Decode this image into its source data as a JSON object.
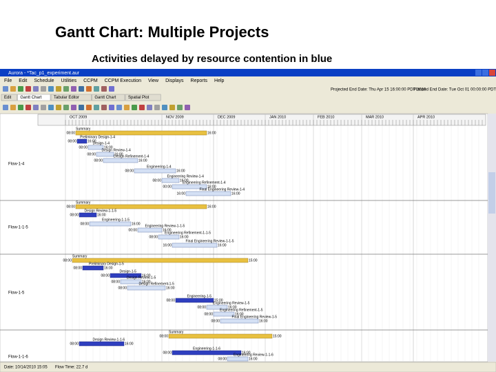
{
  "slide": {
    "title": "Gantt Chart: Multiple Projects",
    "subtitle": "Activities delayed by resource contention in blue"
  },
  "window": {
    "title": "Aurora - *Tac_p1_experiment.aur"
  },
  "menu": [
    "File",
    "Edit",
    "Schedule",
    "Utilities",
    "CCPM",
    "CCPM Execution",
    "View",
    "Displays",
    "Reports",
    "Help"
  ],
  "toolbar": {
    "projected": "Projected End Date: Thu Apr 15 16:00:00 PDT 2010",
    "planned": "Planned End Date: Tue Oct 01 00:00:00 PDT 2009"
  },
  "tabs": [
    "Edit",
    "Gantt Chart",
    "Tabular Editor",
    "Gantt Chart",
    "Spatial Plot"
  ],
  "months": [
    "OCT 2009",
    "NOV 2009",
    "DEC 2009",
    "JAN 2010",
    "FEB 2010",
    "MAR 2010",
    "APR 2010"
  ],
  "flows": [
    {
      "name": "Flow-1-4",
      "tasks": [
        {
          "label": "Summary",
          "start": "08:00",
          "end": "16:00"
        },
        {
          "label": "Preliminary Design-1-4",
          "start": "08:00",
          "end": "16:00"
        },
        {
          "label": "Design-1-4",
          "start": "08:00",
          "end": "16:00"
        },
        {
          "label": "Design Review-1-4",
          "start": "08:00",
          "end": "16:00"
        },
        {
          "label": "Design Refinement-1-4",
          "start": "08:00",
          "end": "16:00"
        },
        {
          "label": "Engineering-1-4",
          "start": "08:00",
          "end": "16:00"
        },
        {
          "label": "Engineering Review-1-4",
          "start": "08:00",
          "end": "16:00"
        },
        {
          "label": "Engineering Refinement-1-4",
          "start": "00:00",
          "end": "16:00"
        },
        {
          "label": "Final Engineering Review-1-4",
          "start": "16:00",
          "end": "16:00"
        }
      ]
    },
    {
      "name": "Flow-1-1-5",
      "tasks": [
        {
          "label": "Summary",
          "start": "08:00",
          "end": "16:00"
        },
        {
          "label": "Design Review-1-1-5",
          "start": "08:00",
          "end": "16:00"
        },
        {
          "label": "Engineering-1-1-5",
          "start": "08:00",
          "end": "16:00"
        },
        {
          "label": "Engineering Review-1-1-5",
          "start": "00:00",
          "end": "16:00"
        },
        {
          "label": "Engineering Refinement-1-1-5",
          "start": "08:00",
          "end": "16:00"
        },
        {
          "label": "Final Engineering Review-1-1-5",
          "start": "16:00",
          "end": "16:00"
        }
      ]
    },
    {
      "name": "Flow-1-5",
      "tasks": [
        {
          "label": "Summary",
          "start": "08:00",
          "end": "15:00"
        },
        {
          "label": "Preliminary Design-1-5",
          "start": "08:00",
          "end": "16:00"
        },
        {
          "label": "Design-1-5",
          "start": "08:00",
          "end": "16:00"
        },
        {
          "label": "Design Review-1-5",
          "start": "08:00",
          "end": "16:00"
        },
        {
          "label": "Design Refinement-1-5",
          "start": "08:00",
          "end": "16:00"
        },
        {
          "label": "Engineering-1-5",
          "start": "08:00",
          "end": "15:00"
        },
        {
          "label": "Engineering Review-1-5",
          "start": "08:00",
          "end": "16:00"
        },
        {
          "label": "Engineering Refinement-1-5",
          "start": "08:00",
          "end": "16:00"
        },
        {
          "label": "Final Engineering Review-1-5",
          "start": "08:00",
          "end": "16:00"
        }
      ]
    },
    {
      "name": "Flow-1-1-6",
      "tasks": [
        {
          "label": "Summary",
          "start": "08:00",
          "end": "15:00"
        },
        {
          "label": "Design Review-1-1-6",
          "start": "08:00",
          "end": "16:00"
        },
        {
          "label": "Engineering-1-1-6",
          "start": "08:00",
          "end": "16:00"
        },
        {
          "label": "Engineering Review-1-1-6",
          "start": "08:00",
          "end": "16:00"
        }
      ]
    }
  ],
  "status": {
    "date": "Date: 10/14/2010 15:05",
    "flow_time": "Flow Time: 22.7 d"
  }
}
